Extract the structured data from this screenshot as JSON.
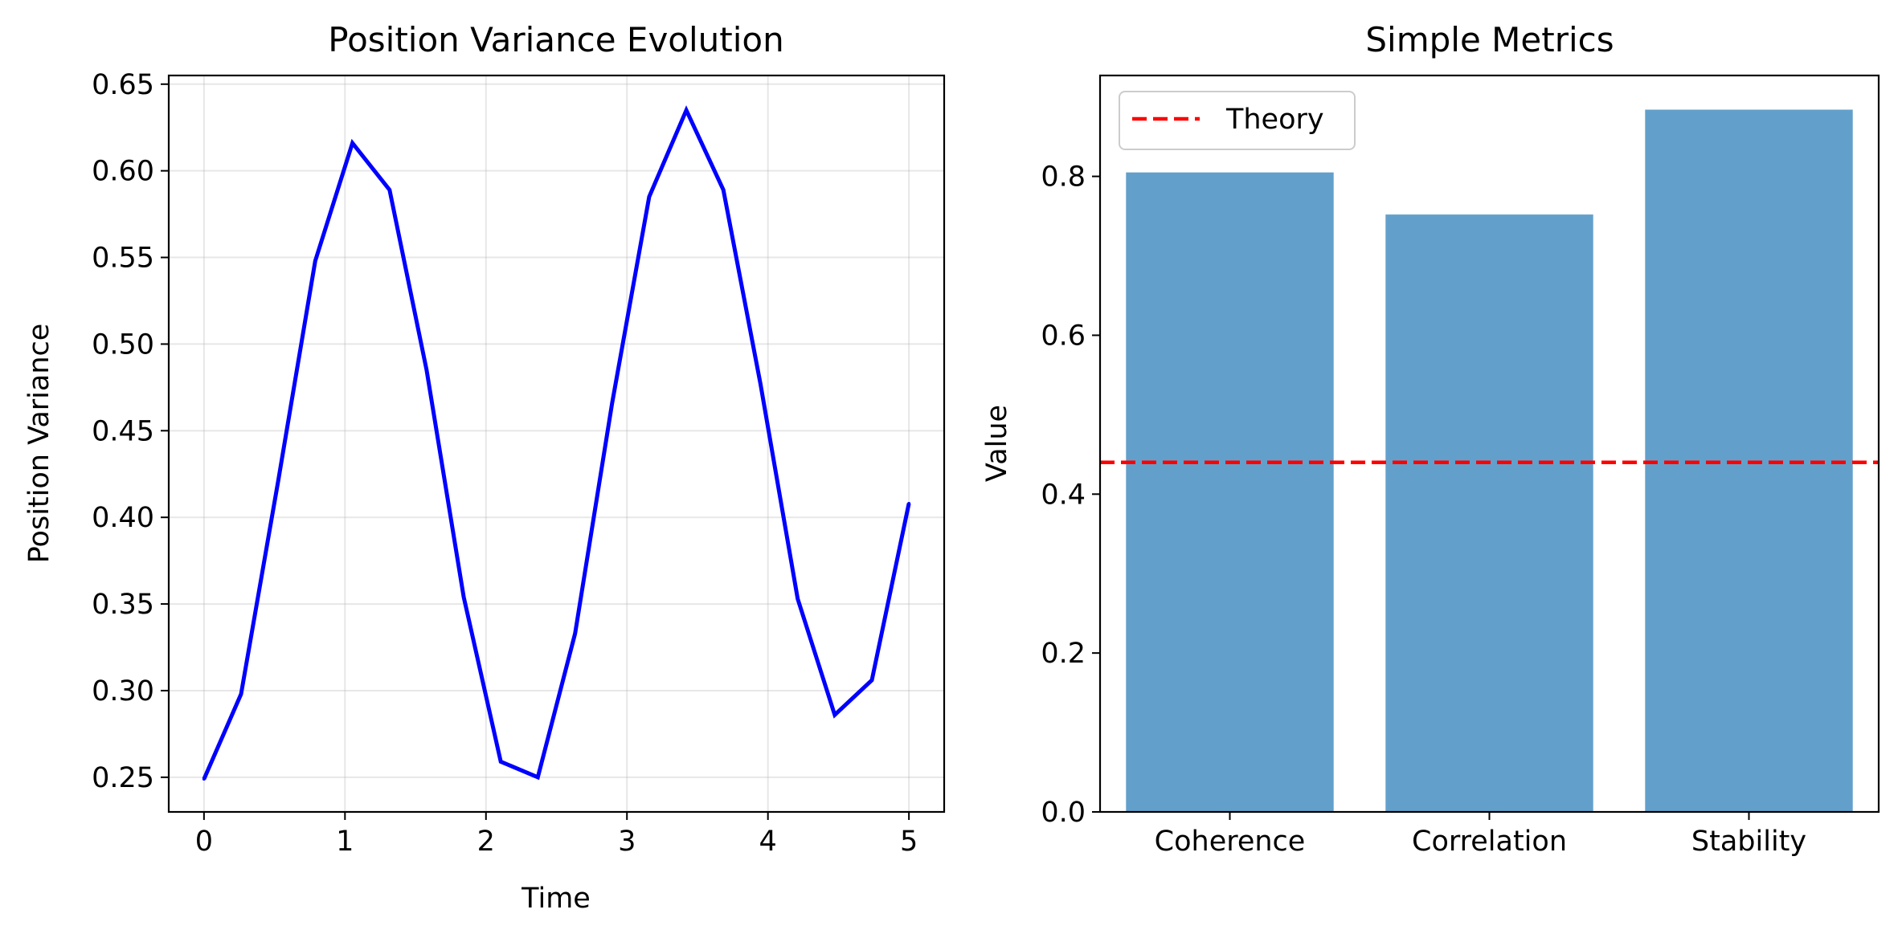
{
  "chart_data": [
    {
      "type": "line",
      "title": "Position Variance Evolution",
      "xlabel": "Time",
      "ylabel": "Position Variance",
      "xlim": [
        -0.25,
        5.25
      ],
      "ylim": [
        0.23,
        0.655
      ],
      "xticks": [
        0,
        1,
        2,
        3,
        4,
        5
      ],
      "xtick_labels": [
        "0",
        "1",
        "2",
        "3",
        "4",
        "5"
      ],
      "yticks": [
        0.25,
        0.3,
        0.35,
        0.4,
        0.45,
        0.5,
        0.55,
        0.6,
        0.65
      ],
      "ytick_labels": [
        "0.25",
        "0.30",
        "0.35",
        "0.40",
        "0.45",
        "0.50",
        "0.55",
        "0.60",
        "0.65"
      ],
      "grid": true,
      "series": [
        {
          "color": "#0000ff",
          "x": [
            0,
            0.263,
            0.526,
            0.789,
            1.053,
            1.316,
            1.579,
            1.842,
            2.105,
            2.368,
            2.632,
            2.895,
            3.158,
            3.421,
            3.684,
            3.947,
            4.211,
            4.474,
            4.737,
            5.0
          ],
          "values": [
            0.249,
            0.298,
            0.421,
            0.548,
            0.616,
            0.589,
            0.485,
            0.354,
            0.259,
            0.25,
            0.333,
            0.466,
            0.585,
            0.635,
            0.589,
            0.477,
            0.353,
            0.286,
            0.306,
            0.408
          ]
        }
      ]
    },
    {
      "type": "bar",
      "title": "Simple Metrics",
      "xlabel": "",
      "ylabel": "Value",
      "ylim": [
        0,
        0.927
      ],
      "categories": [
        "Coherence",
        "Correlation",
        "Stability"
      ],
      "values": [
        0.805,
        0.752,
        0.884
      ],
      "bar_color": "#62a0cb",
      "yticks": [
        0.0,
        0.2,
        0.4,
        0.6,
        0.8
      ],
      "ytick_labels": [
        "0.0",
        "0.2",
        "0.4",
        "0.6",
        "0.8"
      ],
      "grid": false,
      "reference_line": {
        "name": "Theory",
        "value": 0.44,
        "color": "#ff0000",
        "style": "dashed"
      },
      "legend": {
        "position": "top-left",
        "entries": [
          "Theory"
        ]
      }
    }
  ]
}
